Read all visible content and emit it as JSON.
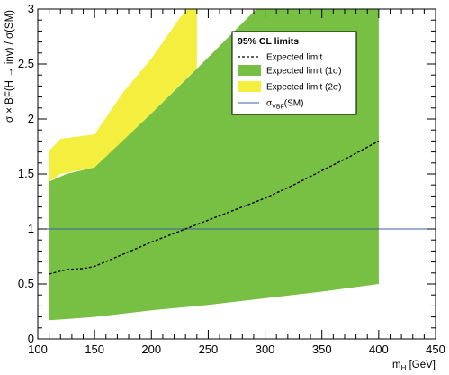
{
  "chart_data": {
    "type": "area",
    "xlim": [
      100,
      450
    ],
    "ylim": [
      0,
      3
    ],
    "x_ticks": [
      100,
      150,
      200,
      250,
      300,
      350,
      400,
      450
    ],
    "y_ticks": [
      0,
      0.5,
      1,
      1.5,
      2,
      2.5,
      3
    ],
    "x_tick_labels": [
      "100",
      "150",
      "200",
      "250",
      "300",
      "350",
      "400",
      "450"
    ],
    "y_tick_labels": [
      "0",
      "0.5",
      "1",
      "1.5",
      "2",
      "2.5",
      "3"
    ],
    "xlabel": "m_H [GeV]",
    "xlabel_main": "m",
    "xlabel_sub": "H",
    "xlabel_unit": " [GeV]",
    "ylabel": "σ × BF(H → inv) / σ(SM)",
    "legend_title": "95% CL limits",
    "legend_position": "top-right",
    "colors": {
      "band_1sigma": "#77c043",
      "band_2sigma": "#f4ee3f",
      "expected_line": "#000000",
      "sm_line": "#3a5fa8"
    },
    "series": [
      {
        "name": "Expected limit",
        "style": "dashed",
        "x": [
          110,
          125,
          140,
          150,
          175,
          200,
          225,
          250,
          275,
          300,
          325,
          350,
          375,
          400
        ],
        "y": [
          0.59,
          0.63,
          0.64,
          0.66,
          0.77,
          0.88,
          0.98,
          1.08,
          1.18,
          1.28,
          1.4,
          1.53,
          1.66,
          1.8
        ]
      },
      {
        "name": "Expected limit (1σ)",
        "x": [
          110,
          125,
          150,
          200,
          250,
          300,
          350,
          400
        ],
        "lower": [
          0.17,
          0.18,
          0.2,
          0.26,
          0.31,
          0.37,
          0.43,
          0.5
        ],
        "upper": [
          1.43,
          1.5,
          1.56,
          2.05,
          2.56,
          3.08,
          3.6,
          4.12
        ]
      },
      {
        "name": "Expected limit (2σ)",
        "x": [
          110,
          120,
          150,
          175,
          200,
          225,
          240
        ],
        "lower": [
          1.43,
          1.5,
          1.56,
          1.8,
          2.05,
          2.31,
          2.46
        ],
        "upper": [
          1.71,
          1.82,
          1.86,
          2.24,
          2.55,
          2.92,
          3.1
        ]
      },
      {
        "name": "σ_VBF(SM)",
        "style": "solid",
        "x": [
          100,
          450
        ],
        "y": [
          1,
          1
        ]
      }
    ],
    "legend": [
      {
        "label_main": "Expected limit",
        "label_sub": "",
        "label_tail": "",
        "symbol": "dashed"
      },
      {
        "label_main": "Expected limit (1σ)",
        "label_sub": "",
        "label_tail": "",
        "symbol": "band_1sigma"
      },
      {
        "label_main": "Expected limit (2σ)",
        "label_sub": "",
        "label_tail": "",
        "symbol": "band_2sigma"
      },
      {
        "label_main": "σ",
        "label_sub": "VBF",
        "label_tail": "(SM)",
        "symbol": "sm_line"
      }
    ]
  }
}
